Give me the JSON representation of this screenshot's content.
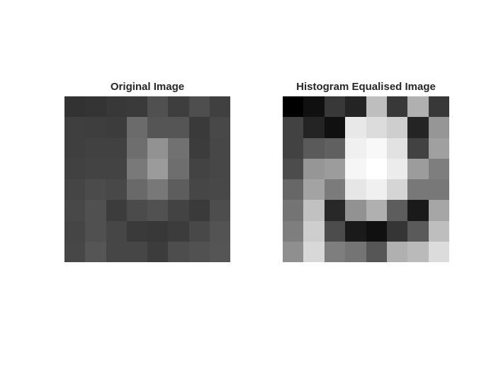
{
  "chart_data": [
    {
      "type": "heatmap",
      "title": "Original Image",
      "colormap": "gray",
      "values": [
        [
          50,
          52,
          56,
          58,
          80,
          62,
          78,
          64
        ],
        [
          63,
          62,
          60,
          107,
          85,
          85,
          58,
          72
        ],
        [
          63,
          65,
          65,
          110,
          146,
          113,
          60,
          71
        ],
        [
          65,
          67,
          67,
          121,
          155,
          110,
          67,
          71
        ],
        [
          69,
          75,
          72,
          105,
          120,
          93,
          70,
          72
        ],
        [
          72,
          80,
          60,
          75,
          81,
          67,
          58,
          77
        ],
        [
          69,
          80,
          70,
          58,
          56,
          60,
          72,
          83
        ],
        [
          71,
          85,
          70,
          70,
          60,
          77,
          81,
          85
        ]
      ]
    },
    {
      "type": "heatmap",
      "title": "Histogram Equalised Image",
      "colormap": "gray",
      "values": [
        [
          0,
          16,
          56,
          36,
          190,
          56,
          176,
          56
        ],
        [
          66,
          36,
          16,
          232,
          220,
          206,
          36,
          150
        ],
        [
          66,
          90,
          96,
          240,
          248,
          226,
          66,
          160
        ],
        [
          76,
          150,
          156,
          246,
          255,
          236,
          156,
          126
        ],
        [
          103,
          163,
          123,
          230,
          240,
          213,
          120,
          120
        ],
        [
          116,
          193,
          40,
          146,
          176,
          93,
          26,
          166
        ],
        [
          126,
          206,
          76,
          26,
          16,
          53,
          90,
          190
        ],
        [
          143,
          216,
          126,
          116,
          86,
          176,
          186,
          220
        ]
      ]
    }
  ]
}
